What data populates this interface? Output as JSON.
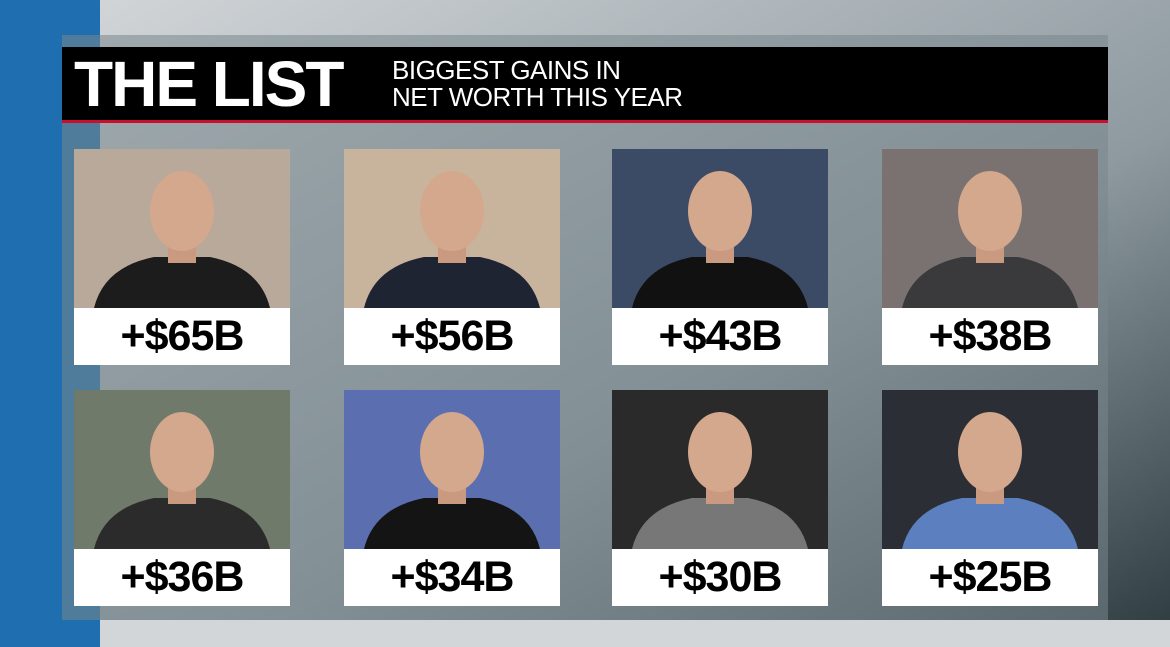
{
  "header": {
    "title": "THE LIST",
    "subtitle": [
      "BIGGEST GAINS IN",
      "NET WORTH THIS YEAR"
    ]
  },
  "cards": [
    {
      "amount": "+$65B"
    },
    {
      "amount": "+$56B"
    },
    {
      "amount": "+$43B"
    },
    {
      "amount": "+$38B"
    },
    {
      "amount": "+$36B"
    },
    {
      "amount": "+$34B"
    },
    {
      "amount": "+$30B"
    },
    {
      "amount": "+$25B"
    }
  ]
}
